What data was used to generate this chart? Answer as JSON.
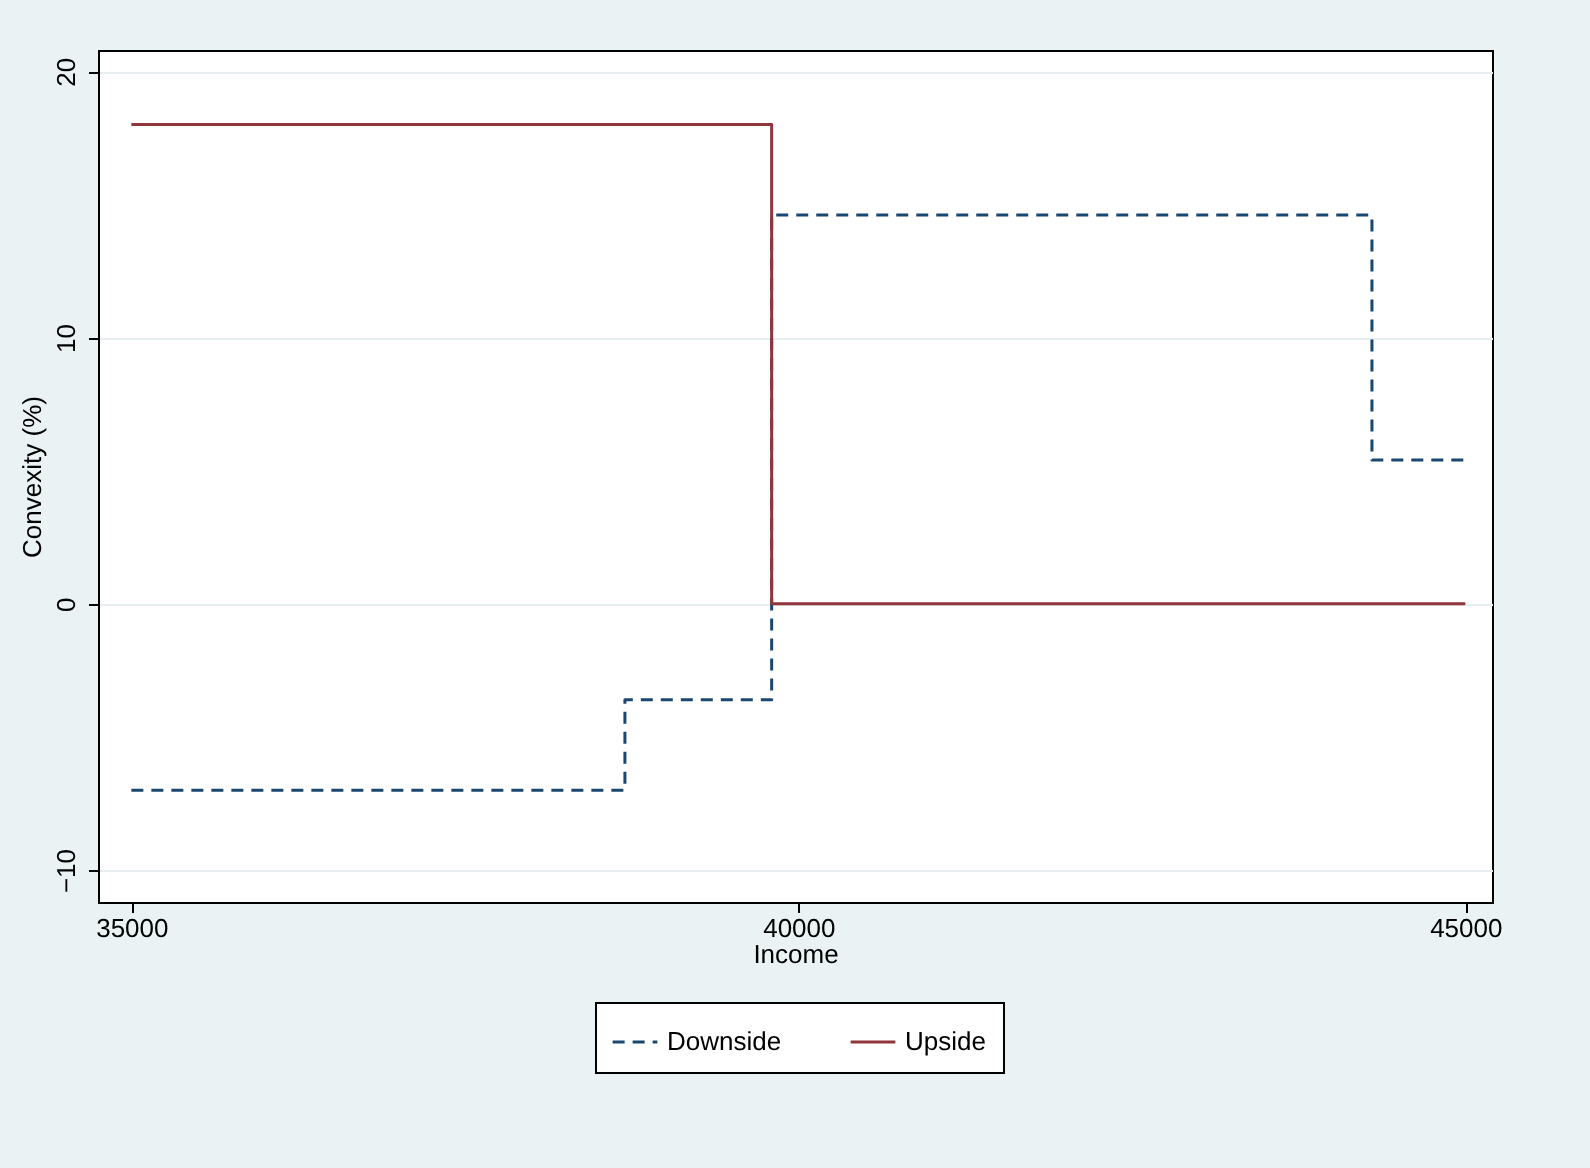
{
  "chart_data": {
    "type": "step",
    "xlabel": "Income",
    "ylabel": "Convexity (%)",
    "xlim": [
      34750,
      45200
    ],
    "xticks": [
      35000,
      40000,
      45000
    ],
    "ylim": [
      -11.2,
      20.8
    ],
    "yticks": [
      -10,
      0,
      10,
      20
    ],
    "grid": "y",
    "legend": "bottom",
    "series": [
      {
        "name": "Downside",
        "color": "#1a476f",
        "line_style": "dashed",
        "x": [
          35000,
          38700,
          39800,
          44300,
          45000
        ],
        "values": [
          -7,
          -3.6,
          14.6,
          5.4,
          5.4
        ]
      },
      {
        "name": "Upside",
        "color": "#90353b",
        "line_style": "solid",
        "x": [
          35000,
          39800,
          45000
        ],
        "values": [
          18,
          0,
          0
        ]
      }
    ]
  }
}
